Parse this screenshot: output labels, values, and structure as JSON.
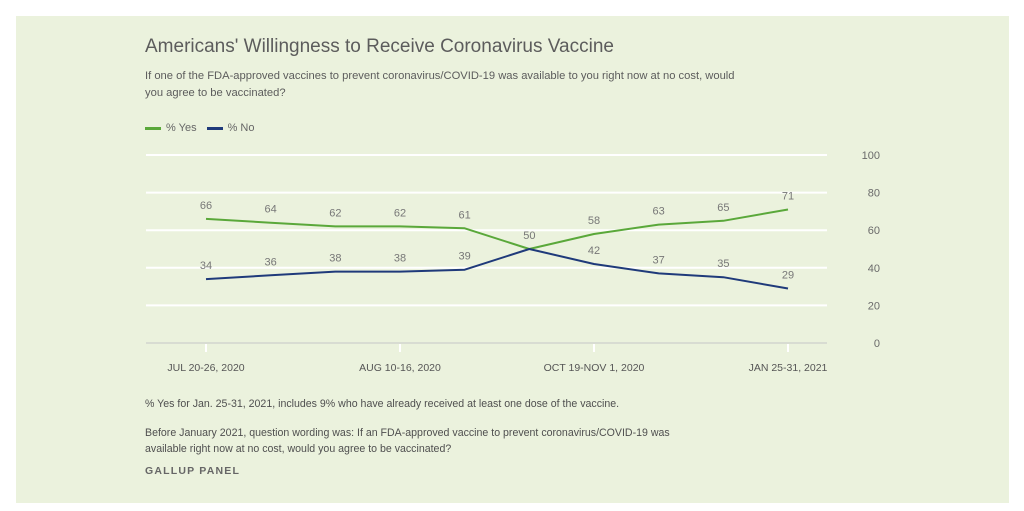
{
  "header": {
    "title": "Americans' Willingness to Receive Coronavirus Vaccine",
    "subtitle": "If one of the FDA-approved vaccines to prevent coronavirus/COVID-19 was available to you right now at no cost, would you agree to be vaccinated?"
  },
  "legend": [
    {
      "label": "% Yes",
      "color": "#5aa83a"
    },
    {
      "label": "% No",
      "color": "#1f3a7a"
    }
  ],
  "footer": {
    "note1": "% Yes for Jan. 25-31, 2021, includes 9% who have already received at least one dose of the vaccine.",
    "note2": "Before January 2021, question wording was: If an FDA-approved vaccine to prevent coronavirus/COVID-19 was available right now at no cost, would you agree to be vaccinated?",
    "source": "GALLUP PANEL"
  },
  "chart_data": {
    "type": "line",
    "title": "Americans' Willingness to Receive Coronavirus Vaccine",
    "xlabel": "",
    "ylabel": "",
    "ylim": [
      0,
      100
    ],
    "yticks": [
      0,
      20,
      40,
      60,
      80,
      100
    ],
    "y_axis_position": "right",
    "grid": true,
    "legend_position": "top-left",
    "x_count": 10,
    "xtick_labels": [
      {
        "index": 0,
        "label": "JUL 20-26, 2020"
      },
      {
        "index": 3,
        "label": "AUG 10-16, 2020"
      },
      {
        "index": 6,
        "label": "OCT 19-NOV 1, 2020"
      },
      {
        "index": 9,
        "label": "JAN 25-31, 2021"
      }
    ],
    "series": [
      {
        "name": "% Yes",
        "color": "#5aa83a",
        "values": [
          66,
          64,
          62,
          62,
          61,
          50,
          58,
          63,
          65,
          71
        ]
      },
      {
        "name": "% No",
        "color": "#1f3a7a",
        "values": [
          34,
          36,
          38,
          38,
          39,
          50,
          42,
          37,
          35,
          29
        ]
      }
    ]
  }
}
